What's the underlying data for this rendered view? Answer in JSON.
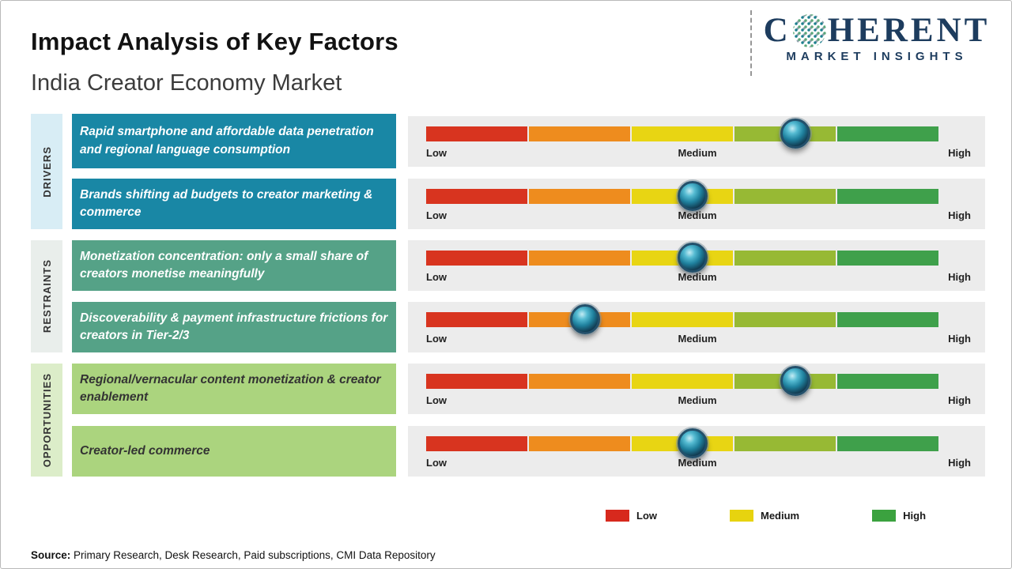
{
  "header": {
    "title": "Impact Analysis of Key Factors",
    "subtitle": "India Creator Economy Market"
  },
  "logo": {
    "name_left": "C",
    "name_right": "HERENT",
    "globe_icon": "dot-globe-icon",
    "tagline": "MARKET INSIGHTS"
  },
  "chart_data": {
    "type": "scatter",
    "subtype": "impact-scale-markers",
    "scale_labels": [
      "Low",
      "Medium",
      "High"
    ],
    "xlim": [
      0,
      100
    ],
    "segment_colors": [
      "#d8341f",
      "#ee8c1e",
      "#e8d513",
      "#97b934",
      "#3fa04b"
    ],
    "groups": [
      {
        "name": "DRIVERS"
      },
      {
        "name": "RESTRAINTS"
      },
      {
        "name": "OPPORTUNITIES"
      }
    ],
    "rows": [
      {
        "group": "DRIVERS",
        "label": "Rapid smartphone and affordable data penetration and regional language consumption",
        "impact_percent": 72,
        "impact_level": "Medium-High"
      },
      {
        "group": "DRIVERS",
        "label": "Brands shifting ad budgets to creator marketing & commerce",
        "impact_percent": 52,
        "impact_level": "Medium"
      },
      {
        "group": "RESTRAINTS",
        "label": "Monetization concentration: only a small share of creators monetise meaningfully",
        "impact_percent": 52,
        "impact_level": "Medium"
      },
      {
        "group": "RESTRAINTS",
        "label": "Discoverability & payment infrastructure frictions for creators in Tier-2/3",
        "impact_percent": 31,
        "impact_level": "Low-Medium"
      },
      {
        "group": "OPPORTUNITIES",
        "label": "Regional/vernacular content monetization & creator enablement",
        "impact_percent": 72,
        "impact_level": "Medium-High"
      },
      {
        "group": "OPPORTUNITIES",
        "label": "Creator-led commerce",
        "impact_percent": 52,
        "impact_level": "Medium"
      }
    ]
  },
  "legend": [
    {
      "label": "Low",
      "color": "#d7291d"
    },
    {
      "label": "Medium",
      "color": "#e7d30f"
    },
    {
      "label": "High",
      "color": "#3ba23f"
    }
  ],
  "source": {
    "prefix": "Source:",
    "text": " Primary Research, Desk Research, Paid subscriptions, CMI Data Repository"
  }
}
